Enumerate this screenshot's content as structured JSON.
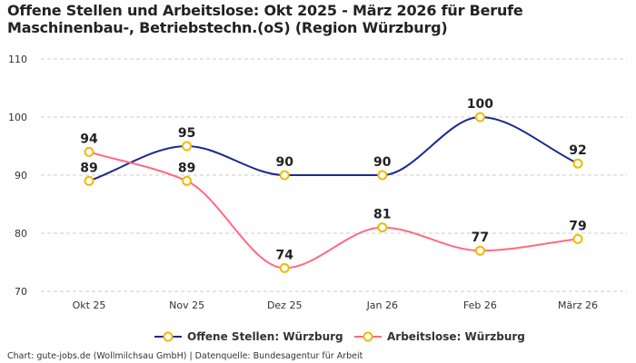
{
  "title": "Offene Stellen und Arbeitslose: Okt 2025 - März 2026 für Berufe Maschinenbau-, Betriebstechn.(oS) (Region Würzburg)",
  "footer": "Chart: gute-jobs.de (Wollmilchsau GmbH) | Datenquelle: Bundesagentur für Arbeit",
  "chart_data": {
    "type": "line",
    "title": "Offene Stellen und Arbeitslose: Okt 2025 - März 2026 für Berufe Maschinenbau-, Betriebstechn.(oS) (Region Würzburg)",
    "categories": [
      "Okt 25",
      "Nov 25",
      "Dez 25",
      "Jan 26",
      "Feb 26",
      "März 26"
    ],
    "ylim": [
      70,
      110
    ],
    "yticks": [
      70,
      80,
      90,
      100,
      110
    ],
    "grid": true,
    "legend": "bottom",
    "marker_color": "#f5b800",
    "series": [
      {
        "name": "Offene Stellen: Würzburg",
        "values": [
          89,
          95,
          90,
          90,
          100,
          92
        ],
        "color": "#1b2a8f"
      },
      {
        "name": "Arbeitslose: Würzburg",
        "values": [
          94,
          89,
          74,
          81,
          77,
          79
        ],
        "color": "#ff6b81"
      }
    ]
  }
}
